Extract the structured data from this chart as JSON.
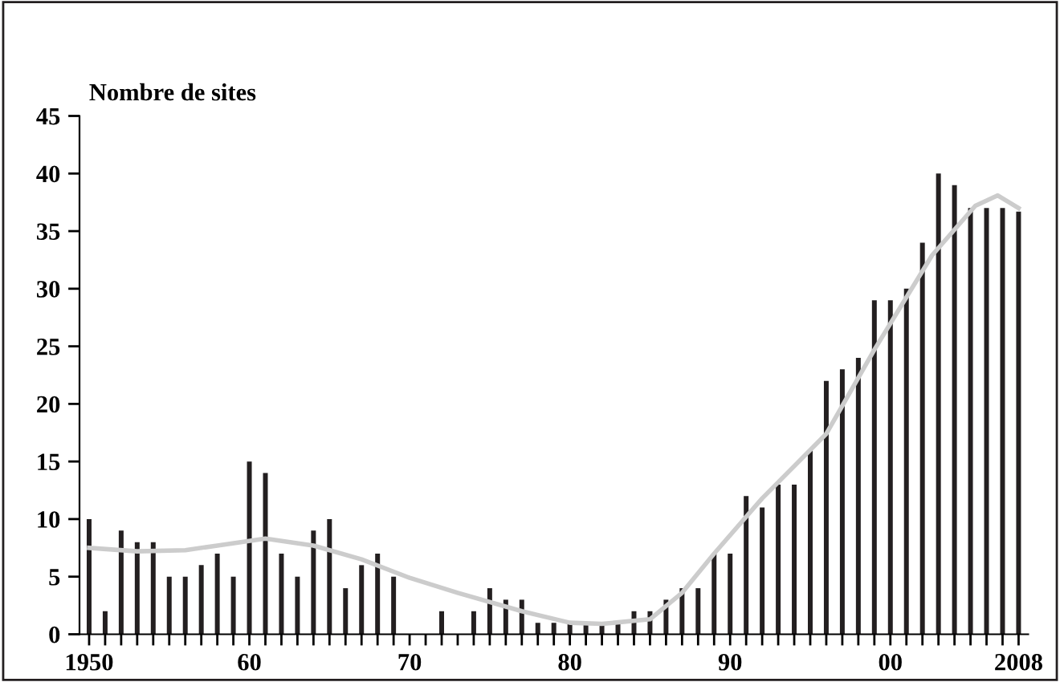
{
  "chart_data": {
    "type": "bar",
    "ylabel": "Nombre de sites",
    "x": [
      1950,
      1951,
      1952,
      1953,
      1954,
      1955,
      1956,
      1957,
      1958,
      1959,
      1960,
      1961,
      1962,
      1963,
      1964,
      1965,
      1966,
      1967,
      1968,
      1969,
      1970,
      1971,
      1972,
      1973,
      1974,
      1975,
      1976,
      1977,
      1978,
      1979,
      1980,
      1981,
      1982,
      1983,
      1984,
      1985,
      1986,
      1987,
      1988,
      1989,
      1990,
      1991,
      1992,
      1993,
      1994,
      1995,
      1996,
      1997,
      1998,
      1999,
      2000,
      2001,
      2002,
      2003,
      2004,
      2005,
      2006,
      2007,
      2008
    ],
    "series": [
      {
        "color": "#231f20",
        "values": [
          10,
          2,
          9,
          8,
          8,
          5,
          5,
          6,
          7,
          5,
          15,
          14,
          7,
          5,
          9,
          10,
          4,
          6,
          7,
          5,
          0,
          0,
          2,
          0,
          2,
          4,
          3,
          3,
          1,
          1,
          1,
          1,
          1,
          1,
          2,
          2,
          3,
          4,
          4,
          7,
          7,
          12,
          11,
          13,
          13,
          16,
          22,
          23,
          24,
          29,
          29,
          30,
          34,
          40,
          39,
          37,
          37,
          37,
          36.7
        ]
      },
      {
        "type": "line",
        "color": "#cccccc",
        "x": [
          1950,
          1953,
          1956,
          1958,
          1961,
          1964,
          1967,
          1970,
          1973,
          1977,
          1980,
          1982,
          1985,
          1987,
          1989,
          1992,
          1996,
          1999,
          2002.6,
          2005.3,
          2006.7,
          2008
        ],
        "values": [
          7.5,
          7.2,
          7.3,
          7.7,
          8.3,
          7.7,
          6.5,
          4.9,
          3.6,
          2.0,
          1.0,
          0.9,
          1.3,
          3.6,
          7.0,
          11.8,
          17.4,
          24.7,
          32.9,
          37.2,
          38.1,
          37
        ]
      }
    ],
    "xlim": [
      1949.4,
      2008.6
    ],
    "xticks": [
      {
        "value": 1950,
        "label": "1950"
      },
      {
        "value": 1951,
        "label": null
      },
      {
        "value": 1952,
        "label": null
      },
      {
        "value": 1953,
        "label": null
      },
      {
        "value": 1954,
        "label": null
      },
      {
        "value": 1955,
        "label": null
      },
      {
        "value": 1956,
        "label": null
      },
      {
        "value": 1957,
        "label": null
      },
      {
        "value": 1958,
        "label": null
      },
      {
        "value": 1959,
        "label": null
      },
      {
        "value": 1960,
        "label": "60"
      },
      {
        "value": 1961,
        "label": null
      },
      {
        "value": 1962,
        "label": null
      },
      {
        "value": 1963,
        "label": null
      },
      {
        "value": 1964,
        "label": null
      },
      {
        "value": 1965,
        "label": null
      },
      {
        "value": 1966,
        "label": null
      },
      {
        "value": 1967,
        "label": null
      },
      {
        "value": 1968,
        "label": null
      },
      {
        "value": 1969,
        "label": null
      },
      {
        "value": 1970,
        "label": "70"
      },
      {
        "value": 1971,
        "label": null
      },
      {
        "value": 1972,
        "label": null
      },
      {
        "value": 1973,
        "label": null
      },
      {
        "value": 1974,
        "label": null
      },
      {
        "value": 1975,
        "label": null
      },
      {
        "value": 1976,
        "label": null
      },
      {
        "value": 1977,
        "label": null
      },
      {
        "value": 1978,
        "label": null
      },
      {
        "value": 1979,
        "label": null
      },
      {
        "value": 1980,
        "label": "80"
      },
      {
        "value": 1981,
        "label": null
      },
      {
        "value": 1982,
        "label": null
      },
      {
        "value": 1983,
        "label": null
      },
      {
        "value": 1984,
        "label": null
      },
      {
        "value": 1985,
        "label": null
      },
      {
        "value": 1986,
        "label": null
      },
      {
        "value": 1987,
        "label": null
      },
      {
        "value": 1988,
        "label": null
      },
      {
        "value": 1989,
        "label": null
      },
      {
        "value": 1990,
        "label": "90"
      },
      {
        "value": 1991,
        "label": null
      },
      {
        "value": 1992,
        "label": null
      },
      {
        "value": 1993,
        "label": null
      },
      {
        "value": 1994,
        "label": null
      },
      {
        "value": 1995,
        "label": null
      },
      {
        "value": 1996,
        "label": null
      },
      {
        "value": 1997,
        "label": null
      },
      {
        "value": 1998,
        "label": null
      },
      {
        "value": 1999,
        "label": null
      },
      {
        "value": 2000,
        "label": "00"
      },
      {
        "value": 2001,
        "label": null
      },
      {
        "value": 2002,
        "label": null
      },
      {
        "value": 2003,
        "label": null
      },
      {
        "value": 2004,
        "label": null
      },
      {
        "value": 2005,
        "label": null
      },
      {
        "value": 2006,
        "label": null
      },
      {
        "value": 2007,
        "label": null
      },
      {
        "value": 2008,
        "label": "2008"
      }
    ],
    "ylim": [
      0,
      45
    ],
    "yticks": [
      0,
      5,
      10,
      15,
      20,
      25,
      30,
      35,
      40,
      45
    ],
    "grid": false
  }
}
